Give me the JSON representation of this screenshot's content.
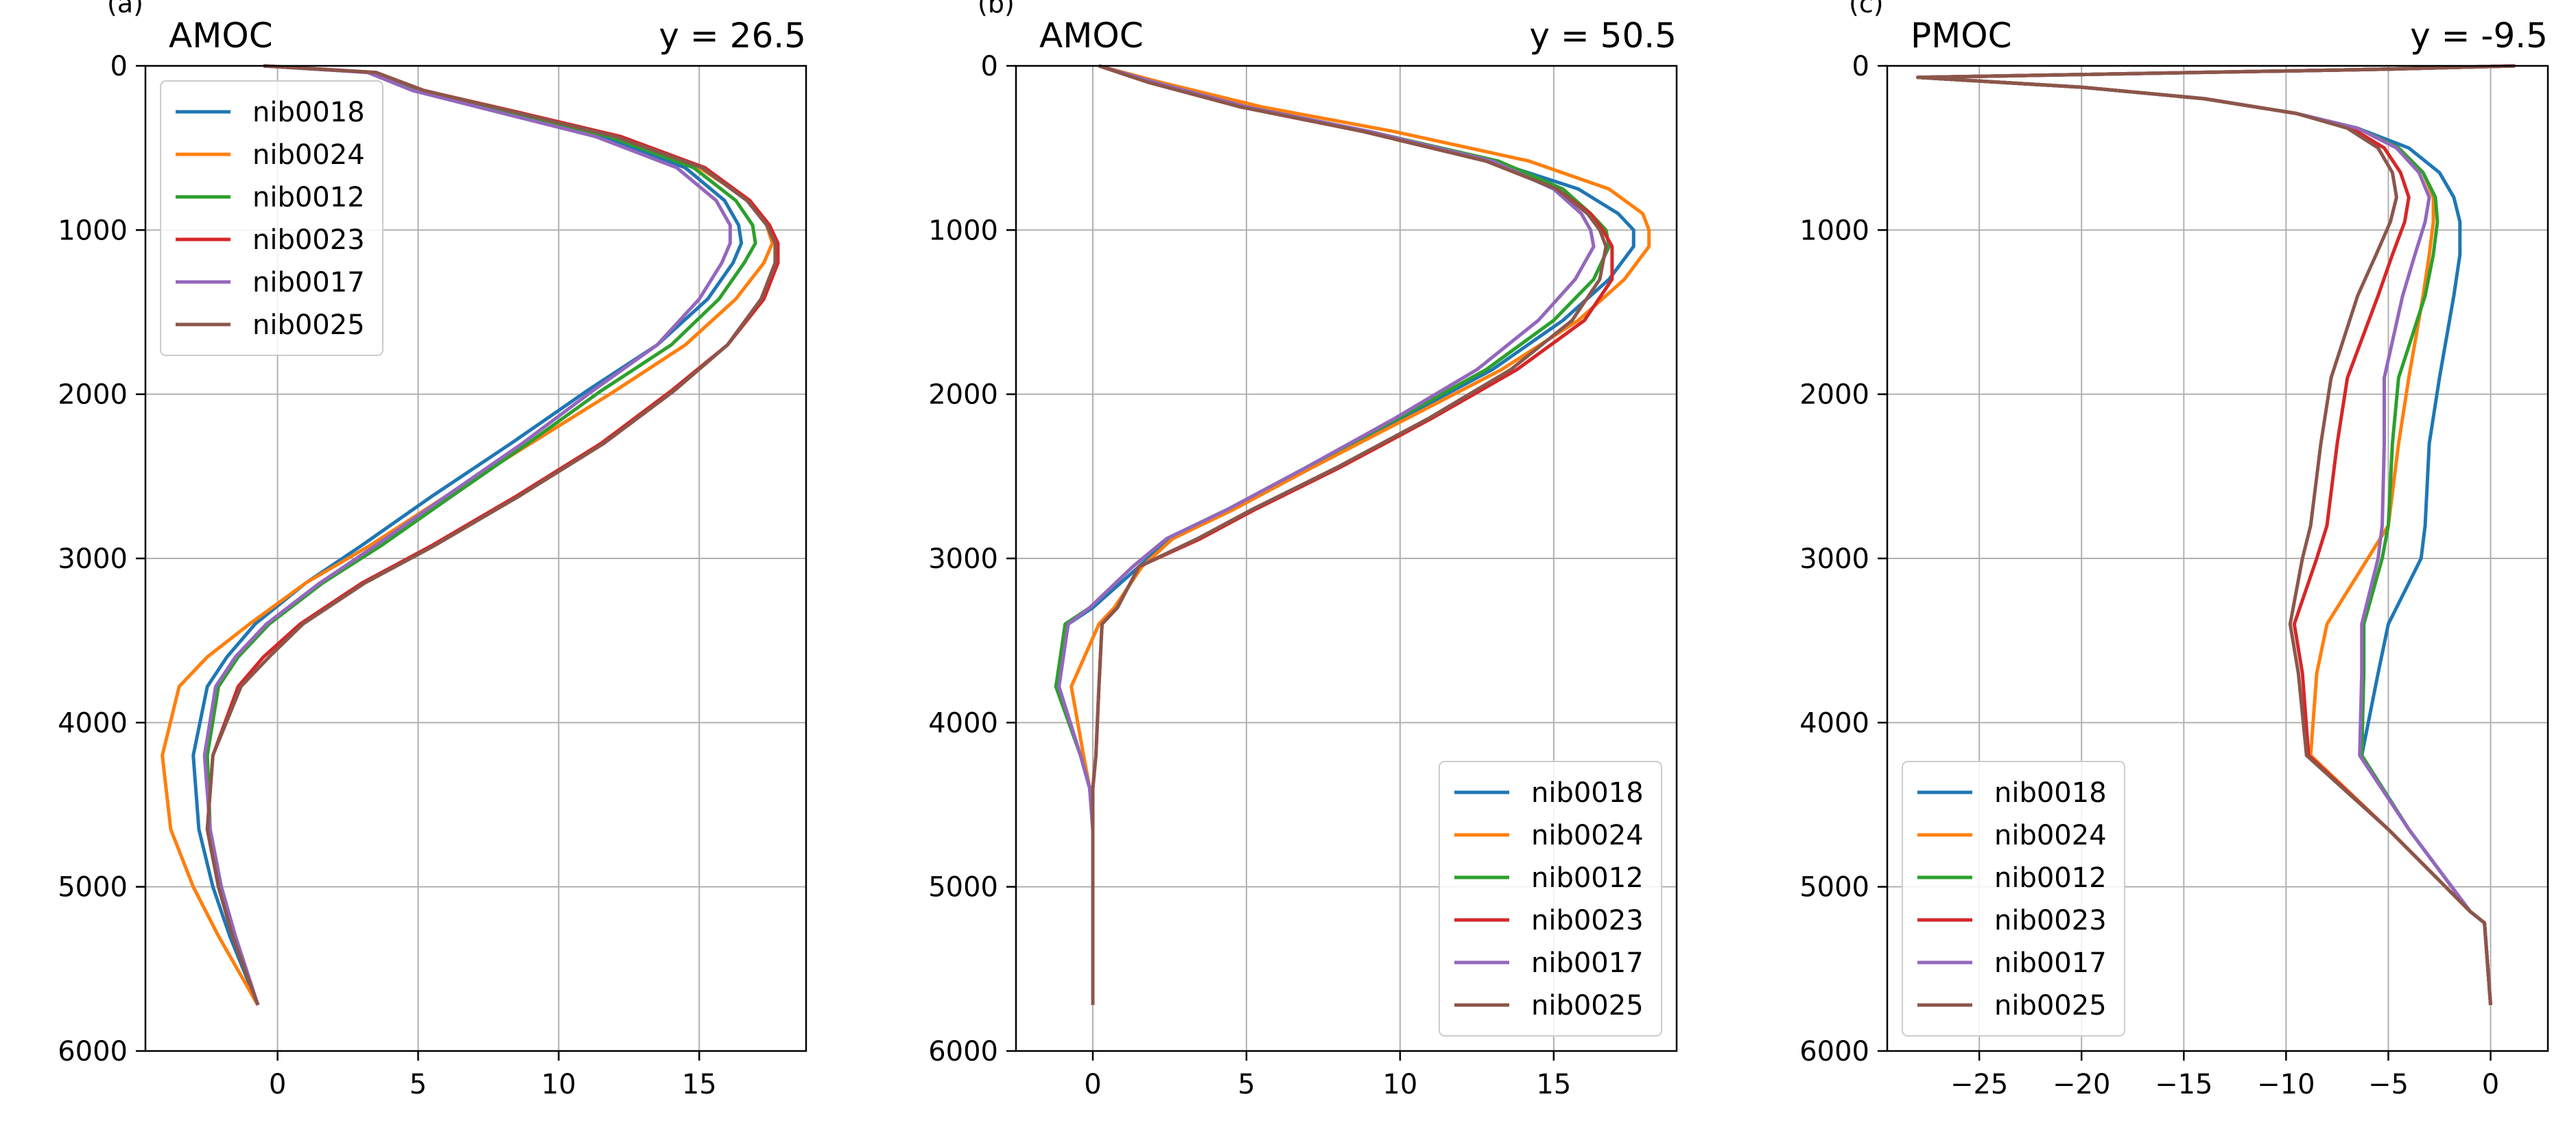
{
  "figure": {
    "background": "#ffffff",
    "grid_color": "#b0b0b0"
  },
  "series_colors": [
    "#1f77b4",
    "#ff7f0e",
    "#2ca02c",
    "#d62728",
    "#9467bd",
    "#8c564b"
  ],
  "chart_data": [
    {
      "type": "line",
      "panel_label": "(a)",
      "title": "AMOC",
      "title_right": "y = 26.5",
      "xlabel": "",
      "ylabel": "",
      "xlim": [
        -4.7,
        18.8
      ],
      "ylim": [
        6000,
        0
      ],
      "xticks": [
        0,
        5,
        10,
        15
      ],
      "yticks": [
        0,
        1000,
        2000,
        3000,
        4000,
        5000,
        6000
      ],
      "grid": true,
      "legend": {
        "position": "upper-left"
      },
      "series": [
        {
          "name": "nib0018",
          "x": [
            -0.5,
            3.3,
            5.0,
            8.0,
            11.5,
            14.5,
            15.9,
            16.4,
            16.5,
            16.2,
            15.3,
            13.5,
            11.0,
            8.3,
            5.5,
            3.0,
            1.0,
            -0.8,
            -1.8,
            -2.5,
            -3.0,
            -2.8,
            -2.3,
            -1.7,
            -0.7
          ],
          "y": [
            0,
            40,
            150,
            280,
            430,
            620,
            820,
            970,
            1080,
            1200,
            1420,
            1700,
            1980,
            2300,
            2620,
            2920,
            3150,
            3400,
            3600,
            3780,
            4200,
            4650,
            5000,
            5300,
            5720
          ]
        },
        {
          "name": "nib0024",
          "x": [
            -0.5,
            3.3,
            5.2,
            8.5,
            12.0,
            15.0,
            16.8,
            17.4,
            17.6,
            17.3,
            16.3,
            14.5,
            12.0,
            9.0,
            6.0,
            3.3,
            1.0,
            -1.0,
            -2.5,
            -3.5,
            -4.1,
            -3.8,
            -3.0,
            -2.1,
            -0.7
          ],
          "y": [
            0,
            40,
            150,
            280,
            430,
            620,
            820,
            970,
            1080,
            1200,
            1420,
            1700,
            1980,
            2300,
            2620,
            2920,
            3150,
            3400,
            3600,
            3780,
            4200,
            4650,
            5000,
            5300,
            5720
          ]
        },
        {
          "name": "nib0012",
          "x": [
            -0.5,
            3.3,
            5.0,
            8.2,
            11.8,
            14.8,
            16.3,
            16.9,
            17.0,
            16.6,
            15.7,
            14.0,
            11.5,
            8.9,
            6.2,
            3.7,
            1.6,
            -0.3,
            -1.4,
            -2.1,
            -2.5,
            -2.4,
            -2.0,
            -1.5,
            -0.7
          ],
          "y": [
            0,
            40,
            150,
            280,
            430,
            620,
            820,
            970,
            1080,
            1200,
            1420,
            1700,
            1980,
            2300,
            2620,
            2920,
            3150,
            3400,
            3600,
            3780,
            4200,
            4650,
            5000,
            5300,
            5720
          ]
        },
        {
          "name": "nib0023",
          "x": [
            -0.5,
            3.5,
            5.2,
            8.5,
            12.2,
            15.2,
            16.8,
            17.5,
            17.8,
            17.8,
            17.3,
            16.0,
            14.0,
            11.5,
            8.5,
            5.5,
            3.0,
            0.8,
            -0.5,
            -1.4,
            -2.3,
            -2.5,
            -2.1,
            -1.6,
            -0.7
          ],
          "y": [
            0,
            40,
            150,
            280,
            430,
            620,
            820,
            970,
            1080,
            1200,
            1420,
            1700,
            1980,
            2300,
            2620,
            2920,
            3150,
            3400,
            3600,
            3780,
            4200,
            4650,
            5000,
            5300,
            5720
          ]
        },
        {
          "name": "nib0017",
          "x": [
            -0.5,
            3.2,
            4.8,
            7.8,
            11.3,
            14.2,
            15.6,
            16.1,
            16.1,
            15.8,
            15.0,
            13.5,
            11.2,
            8.7,
            6.0,
            3.5,
            1.5,
            -0.4,
            -1.5,
            -2.2,
            -2.6,
            -2.4,
            -2.0,
            -1.5,
            -0.7
          ],
          "y": [
            0,
            40,
            150,
            280,
            430,
            620,
            820,
            970,
            1080,
            1200,
            1420,
            1700,
            1980,
            2300,
            2620,
            2920,
            3150,
            3400,
            3600,
            3780,
            4200,
            4650,
            5000,
            5300,
            5720
          ]
        },
        {
          "name": "nib0025",
          "x": [
            -0.5,
            3.5,
            5.2,
            8.4,
            12.0,
            15.1,
            16.7,
            17.4,
            17.7,
            17.7,
            17.2,
            16.0,
            14.1,
            11.6,
            8.6,
            5.6,
            3.1,
            0.9,
            -0.3,
            -1.3,
            -2.3,
            -2.5,
            -2.1,
            -1.6,
            -0.7
          ],
          "y": [
            0,
            40,
            150,
            280,
            430,
            620,
            820,
            970,
            1080,
            1200,
            1420,
            1700,
            1980,
            2300,
            2620,
            2920,
            3150,
            3400,
            3600,
            3780,
            4200,
            4650,
            5000,
            5300,
            5720
          ]
        }
      ]
    },
    {
      "type": "line",
      "panel_label": "(b)",
      "title": "AMOC",
      "title_right": "y = 50.5",
      "xlabel": "",
      "ylabel": "",
      "xlim": [
        -2.5,
        19.0
      ],
      "ylim": [
        6000,
        0
      ],
      "xticks": [
        0,
        5,
        10,
        15
      ],
      "yticks": [
        0,
        1000,
        2000,
        3000,
        4000,
        5000,
        6000
      ],
      "grid": true,
      "legend": {
        "position": "lower-right"
      },
      "series": [
        {
          "name": "nib0018",
          "x": [
            0.2,
            2.0,
            5.0,
            9.0,
            13.0,
            15.8,
            17.1,
            17.6,
            17.6,
            16.8,
            15.3,
            13.0,
            10.0,
            7.0,
            4.5,
            2.5,
            1.5,
            0.0,
            -0.8,
            -1.2,
            -0.4,
            -0.1,
            0.0,
            0.0,
            0.0,
            0.0
          ],
          "y": [
            0,
            100,
            250,
            400,
            580,
            750,
            900,
            1000,
            1100,
            1300,
            1550,
            1850,
            2150,
            2450,
            2700,
            2880,
            3050,
            3300,
            3400,
            3780,
            4200,
            4400,
            4650,
            5000,
            5300,
            5720
          ]
        },
        {
          "name": "nib0024",
          "x": [
            0.2,
            2.2,
            5.5,
            9.8,
            14.2,
            16.8,
            17.9,
            18.1,
            18.1,
            17.3,
            15.8,
            13.3,
            10.2,
            7.1,
            4.6,
            2.6,
            1.6,
            0.7,
            0.2,
            -0.7,
            -0.3,
            -0.1,
            0.0,
            0.0,
            0.0,
            0.0
          ],
          "y": [
            0,
            100,
            250,
            400,
            580,
            750,
            900,
            1000,
            1100,
            1300,
            1550,
            1850,
            2150,
            2450,
            2700,
            2880,
            3050,
            3300,
            3400,
            3780,
            4200,
            4400,
            4650,
            5000,
            5300,
            5720
          ]
        },
        {
          "name": "nib0012",
          "x": [
            0.2,
            2.0,
            5.0,
            9.0,
            13.2,
            15.3,
            16.2,
            16.7,
            16.8,
            16.3,
            15.0,
            12.8,
            9.9,
            6.9,
            4.4,
            2.4,
            1.3,
            -0.1,
            -0.9,
            -1.2,
            -0.4,
            -0.1,
            0.0,
            0.0,
            0.0,
            0.0
          ],
          "y": [
            0,
            100,
            250,
            400,
            580,
            750,
            900,
            1000,
            1100,
            1300,
            1550,
            1850,
            2150,
            2450,
            2700,
            2880,
            3050,
            3300,
            3400,
            3780,
            4200,
            4400,
            4650,
            5000,
            5300,
            5720
          ]
        },
        {
          "name": "nib0023",
          "x": [
            0.2,
            1.8,
            4.8,
            8.8,
            12.8,
            15.1,
            16.2,
            16.6,
            16.9,
            16.9,
            16.0,
            13.8,
            11.0,
            8.0,
            5.3,
            3.5,
            1.5,
            0.8,
            0.3,
            0.2,
            0.1,
            0.0,
            0.0,
            0.0,
            0.0,
            0.0
          ],
          "y": [
            0,
            100,
            250,
            400,
            580,
            750,
            900,
            1000,
            1100,
            1300,
            1550,
            1850,
            2150,
            2450,
            2700,
            2880,
            3050,
            3300,
            3400,
            3780,
            4200,
            4400,
            4650,
            5000,
            5300,
            5720
          ]
        },
        {
          "name": "nib0017",
          "x": [
            0.2,
            2.0,
            5.0,
            9.0,
            13.0,
            15.0,
            15.9,
            16.2,
            16.3,
            15.7,
            14.5,
            12.5,
            9.8,
            6.9,
            4.4,
            2.4,
            1.3,
            -0.1,
            -0.8,
            -1.1,
            -0.4,
            -0.1,
            0.0,
            0.0,
            0.0,
            0.0
          ],
          "y": [
            0,
            100,
            250,
            400,
            580,
            750,
            900,
            1000,
            1100,
            1300,
            1550,
            1850,
            2150,
            2450,
            2700,
            2880,
            3050,
            3300,
            3400,
            3780,
            4200,
            4400,
            4650,
            5000,
            5300,
            5720
          ]
        },
        {
          "name": "nib0025",
          "x": [
            0.2,
            1.8,
            4.8,
            8.8,
            12.8,
            15.1,
            16.1,
            16.5,
            16.7,
            16.5,
            15.6,
            13.6,
            10.9,
            7.9,
            5.2,
            3.4,
            1.5,
            0.8,
            0.3,
            0.2,
            0.1,
            0.0,
            0.0,
            0.0,
            0.0,
            0.0
          ],
          "y": [
            0,
            100,
            250,
            400,
            580,
            750,
            900,
            1000,
            1100,
            1300,
            1550,
            1850,
            2150,
            2450,
            2700,
            2880,
            3050,
            3300,
            3400,
            3780,
            4200,
            4400,
            4650,
            5000,
            5300,
            5720
          ]
        }
      ]
    },
    {
      "type": "line",
      "panel_label": "(c)",
      "title": "PMOC",
      "title_right": "y = -9.5",
      "xlabel": "",
      "ylabel": "",
      "xlim": [
        -29.5,
        2.8
      ],
      "ylim": [
        6000,
        0
      ],
      "xticks": [
        -25,
        -20,
        -15,
        -10,
        -5,
        0
      ],
      "yticks": [
        0,
        1000,
        2000,
        3000,
        4000,
        5000,
        6000
      ],
      "grid": true,
      "legend": {
        "position": "lower-left"
      },
      "series": [
        {
          "name": "nib0018",
          "x": [
            1.2,
            -5.0,
            -28.0,
            -20.0,
            -14.0,
            -9.5,
            -6.5,
            -4.0,
            -2.5,
            -1.8,
            -1.5,
            -1.5,
            -1.8,
            -2.5,
            -3.0,
            -3.2,
            -3.4,
            -5.0,
            -5.5,
            -6.3,
            -4.0,
            -1.0,
            -0.3,
            0.0
          ],
          "y": [
            0,
            20,
            70,
            130,
            200,
            290,
            380,
            500,
            650,
            800,
            950,
            1150,
            1400,
            1900,
            2300,
            2800,
            3000,
            3400,
            3700,
            4200,
            4650,
            5150,
            5220,
            5720
          ]
        },
        {
          "name": "nib0024",
          "x": [
            1.2,
            -5.0,
            -28.0,
            -20.0,
            -14.0,
            -9.5,
            -6.5,
            -4.5,
            -3.3,
            -2.8,
            -2.8,
            -3.0,
            -3.3,
            -4.0,
            -4.5,
            -5.0,
            -6.0,
            -8.0,
            -8.5,
            -8.8,
            -5.0,
            -1.0,
            -0.3,
            0.0
          ],
          "y": [
            0,
            20,
            70,
            130,
            200,
            290,
            380,
            500,
            650,
            800,
            950,
            1150,
            1400,
            1900,
            2300,
            2800,
            3000,
            3400,
            3700,
            4200,
            4650,
            5150,
            5220,
            5720
          ]
        },
        {
          "name": "nib0012",
          "x": [
            1.2,
            -5.0,
            -28.0,
            -20.0,
            -14.0,
            -9.5,
            -6.5,
            -4.5,
            -3.3,
            -2.7,
            -2.6,
            -2.8,
            -3.2,
            -4.5,
            -4.8,
            -5.0,
            -5.3,
            -6.2,
            -6.2,
            -6.3,
            -4.0,
            -1.0,
            -0.3,
            0.0
          ],
          "y": [
            0,
            20,
            70,
            130,
            200,
            290,
            380,
            500,
            650,
            800,
            950,
            1150,
            1400,
            1900,
            2300,
            2800,
            3000,
            3400,
            3700,
            4200,
            4650,
            5150,
            5220,
            5720
          ]
        },
        {
          "name": "nib0023",
          "x": [
            1.2,
            -5.0,
            -28.0,
            -20.0,
            -14.0,
            -9.5,
            -6.8,
            -5.2,
            -4.4,
            -4.0,
            -4.2,
            -4.8,
            -5.5,
            -7.0,
            -7.5,
            -8.0,
            -8.5,
            -9.6,
            -9.2,
            -8.9,
            -5.0,
            -1.0,
            -0.3,
            0.0
          ],
          "y": [
            0,
            20,
            70,
            130,
            200,
            290,
            380,
            500,
            650,
            800,
            950,
            1150,
            1400,
            1900,
            2300,
            2800,
            3000,
            3400,
            3700,
            4200,
            4650,
            5150,
            5220,
            5720
          ]
        },
        {
          "name": "nib0017",
          "x": [
            1.2,
            -5.0,
            -28.0,
            -20.0,
            -14.0,
            -9.5,
            -6.5,
            -4.6,
            -3.5,
            -3.0,
            -3.2,
            -3.7,
            -4.3,
            -5.2,
            -5.2,
            -5.3,
            -5.5,
            -6.3,
            -6.3,
            -6.4,
            -4.0,
            -1.0,
            -0.3,
            0.0
          ],
          "y": [
            0,
            20,
            70,
            130,
            200,
            290,
            380,
            500,
            650,
            800,
            950,
            1150,
            1400,
            1900,
            2300,
            2800,
            3000,
            3400,
            3700,
            4200,
            4650,
            5150,
            5220,
            5720
          ]
        },
        {
          "name": "nib0025",
          "x": [
            1.2,
            -5.0,
            -28.0,
            -20.0,
            -14.0,
            -9.5,
            -7.0,
            -5.5,
            -4.8,
            -4.6,
            -4.9,
            -5.6,
            -6.5,
            -7.8,
            -8.3,
            -8.8,
            -9.2,
            -9.8,
            -9.4,
            -9.0,
            -5.0,
            -1.0,
            -0.3,
            0.0
          ],
          "y": [
            0,
            20,
            70,
            130,
            200,
            290,
            380,
            500,
            650,
            800,
            950,
            1150,
            1400,
            1900,
            2300,
            2800,
            3000,
            3400,
            3700,
            4200,
            4650,
            5150,
            5220,
            5720
          ]
        }
      ]
    }
  ]
}
